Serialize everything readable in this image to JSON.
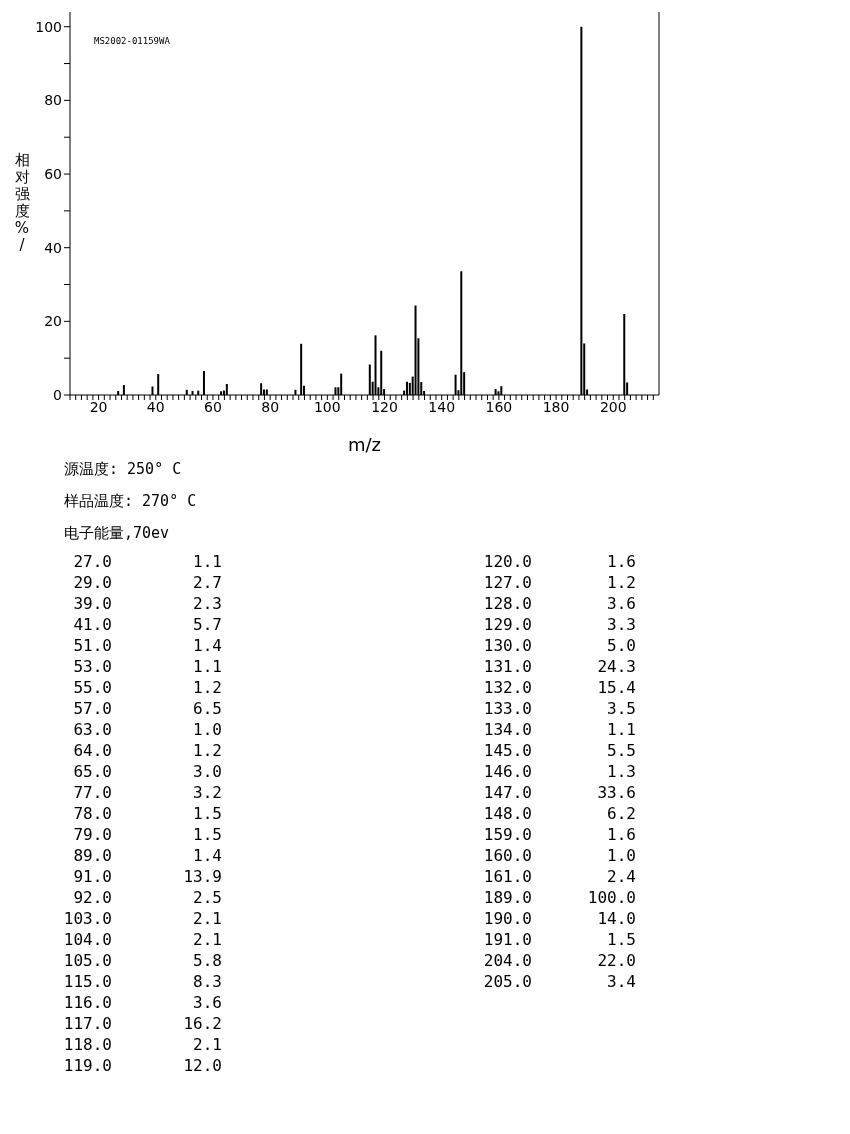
{
  "chart_data": {
    "type": "bar",
    "xlabel": "m/z",
    "ylabel": "相对强度%/",
    "x": [
      27,
      29,
      39,
      41,
      51,
      53,
      55,
      57,
      63,
      64,
      65,
      77,
      78,
      79,
      89,
      91,
      92,
      103,
      104,
      105,
      115,
      116,
      117,
      118,
      119,
      120,
      127,
      128,
      129,
      130,
      131,
      132,
      133,
      134,
      145,
      146,
      147,
      148,
      159,
      160,
      161,
      189,
      190,
      191,
      204,
      205
    ],
    "values": [
      1.1,
      2.7,
      2.3,
      5.7,
      1.4,
      1.1,
      1.2,
      6.5,
      1.0,
      1.2,
      3.0,
      3.2,
      1.5,
      1.5,
      1.4,
      13.9,
      2.5,
      2.1,
      2.1,
      5.8,
      8.3,
      3.6,
      16.2,
      2.1,
      12.0,
      1.6,
      1.2,
      3.6,
      3.3,
      5.0,
      24.3,
      15.4,
      3.5,
      1.1,
      5.5,
      1.3,
      33.6,
      6.2,
      1.6,
      1.0,
      2.4,
      100.0,
      14.0,
      1.5,
      22.0,
      3.4
    ],
    "color": "#000000",
    "xlim": [
      10,
      216
    ],
    "xticks": [
      {
        "value": 10,
        "label": null
      },
      {
        "value": 12,
        "label": null
      },
      {
        "value": 14,
        "label": null
      },
      {
        "value": 16,
        "label": null
      },
      {
        "value": 18,
        "label": null
      },
      20,
      {
        "value": 22,
        "label": null
      },
      {
        "value": 24,
        "label": null
      },
      {
        "value": 26,
        "label": null
      },
      {
        "value": 28,
        "label": null
      },
      {
        "value": 30,
        "label": null
      },
      {
        "value": 32,
        "label": null
      },
      {
        "value": 34,
        "label": null
      },
      {
        "value": 36,
        "label": null
      },
      {
        "value": 38,
        "label": null
      },
      40,
      {
        "value": 42,
        "label": null
      },
      {
        "value": 44,
        "label": null
      },
      {
        "value": 46,
        "label": null
      },
      {
        "value": 48,
        "label": null
      },
      {
        "value": 50,
        "label": null
      },
      {
        "value": 52,
        "label": null
      },
      {
        "value": 54,
        "label": null
      },
      {
        "value": 56,
        "label": null
      },
      {
        "value": 58,
        "label": null
      },
      60,
      {
        "value": 62,
        "label": null
      },
      {
        "value": 64,
        "label": null
      },
      {
        "value": 66,
        "label": null
      },
      {
        "value": 68,
        "label": null
      },
      {
        "value": 70,
        "label": null
      },
      {
        "value": 72,
        "label": null
      },
      {
        "value": 74,
        "label": null
      },
      {
        "value": 76,
        "label": null
      },
      {
        "value": 78,
        "label": null
      },
      80,
      {
        "value": 82,
        "label": null
      },
      {
        "value": 84,
        "label": null
      },
      {
        "value": 86,
        "label": null
      },
      {
        "value": 88,
        "label": null
      },
      {
        "value": 90,
        "label": null
      },
      {
        "value": 92,
        "label": null
      },
      {
        "value": 94,
        "label": null
      },
      {
        "value": 96,
        "label": null
      },
      {
        "value": 98,
        "label": null
      },
      100,
      {
        "value": 102,
        "label": null
      },
      {
        "value": 104,
        "label": null
      },
      {
        "value": 106,
        "label": null
      },
      {
        "value": 108,
        "label": null
      },
      {
        "value": 110,
        "label": null
      },
      {
        "value": 112,
        "label": null
      },
      {
        "value": 114,
        "label": null
      },
      {
        "value": 116,
        "label": null
      },
      {
        "value": 118,
        "label": null
      },
      120,
      {
        "value": 122,
        "label": null
      },
      {
        "value": 124,
        "label": null
      },
      {
        "value": 126,
        "label": null
      },
      {
        "value": 128,
        "label": null
      },
      {
        "value": 130,
        "label": null
      },
      {
        "value": 132,
        "label": null
      },
      {
        "value": 134,
        "label": null
      },
      {
        "value": 136,
        "label": null
      },
      {
        "value": 138,
        "label": null
      },
      140,
      {
        "value": 142,
        "label": null
      },
      {
        "value": 144,
        "label": null
      },
      {
        "value": 146,
        "label": null
      },
      {
        "value": 148,
        "label": null
      },
      {
        "value": 150,
        "label": null
      },
      {
        "value": 152,
        "label": null
      },
      {
        "value": 154,
        "label": null
      },
      {
        "value": 156,
        "label": null
      },
      {
        "value": 158,
        "label": null
      },
      160,
      {
        "value": 162,
        "label": null
      },
      {
        "value": 164,
        "label": null
      },
      {
        "value": 166,
        "label": null
      },
      {
        "value": 168,
        "label": null
      },
      {
        "value": 170,
        "label": null
      },
      {
        "value": 172,
        "label": null
      },
      {
        "value": 174,
        "label": null
      },
      {
        "value": 176,
        "label": null
      },
      {
        "value": 178,
        "label": null
      },
      180,
      {
        "value": 182,
        "label": null
      },
      {
        "value": 184,
        "label": null
      },
      {
        "value": 186,
        "label": null
      },
      {
        "value": 188,
        "label": null
      },
      {
        "value": 190,
        "label": null
      },
      {
        "value": 192,
        "label": null
      },
      {
        "value": 194,
        "label": null
      },
      {
        "value": 196,
        "label": null
      },
      {
        "value": 198,
        "label": null
      },
      200,
      {
        "value": 202,
        "label": null
      },
      {
        "value": 204,
        "label": null
      },
      {
        "value": 206,
        "label": null
      },
      {
        "value": 208,
        "label": null
      },
      {
        "value": 210,
        "label": null
      },
      {
        "value": 212,
        "label": null
      },
      {
        "value": 214,
        "label": null
      }
    ],
    "ylim": [
      0,
      104
    ],
    "yticks": [
      0,
      {
        "value": 10,
        "label": null
      },
      20,
      {
        "value": 30,
        "label": null
      },
      40,
      {
        "value": 50,
        "label": null
      },
      60,
      {
        "value": 70,
        "label": null
      },
      80,
      {
        "value": 90,
        "label": null
      },
      100
    ],
    "grid": false,
    "legend": false,
    "annotations": [
      "MS2002-01159WA",
      "源温度: 250° C",
      "样品温度: 270° C",
      "电子能量,70ev",
      "27.0",
      "1.1",
      "29.0",
      "2.7",
      "39.0",
      "2.3",
      "41.0",
      "5.7",
      "51.0",
      "1.4",
      "53.0",
      "1.1",
      "55.0",
      "1.2",
      "57.0",
      "6.5",
      "63.0",
      "1.0",
      "64.0",
      "1.2",
      "65.0",
      "3.0",
      "77.0",
      "3.2",
      "78.0",
      "1.5",
      "79.0",
      "1.5",
      "89.0",
      "1.4",
      "91.0",
      "13.9",
      "92.0",
      "2.5",
      "103.0",
      "2.1",
      "104.0",
      "2.1",
      "105.0",
      "5.8",
      "115.0",
      "8.3",
      "116.0",
      "3.6",
      "117.0",
      "16.2",
      "118.0",
      "2.1",
      "119.0",
      "12.0",
      "120.0",
      "1.6",
      "127.0",
      "1.2",
      "128.0",
      "3.6",
      "129.0",
      "3.3",
      "130.0",
      "5.0",
      "131.0",
      "24.3",
      "132.0",
      "15.4",
      "133.0",
      "3.5",
      "134.0",
      "1.1",
      "145.0",
      "5.5",
      "146.0",
      "1.3",
      "147.0",
      "33.6",
      "148.0",
      "6.2",
      "159.0",
      "1.6",
      "160.0",
      "1.0",
      "161.0",
      "2.4",
      "189.0",
      "100.0",
      "190.0",
      "14.0",
      "191.0",
      "1.5",
      "204.0",
      "22.0",
      "205.0",
      "3.4"
    ]
  }
}
